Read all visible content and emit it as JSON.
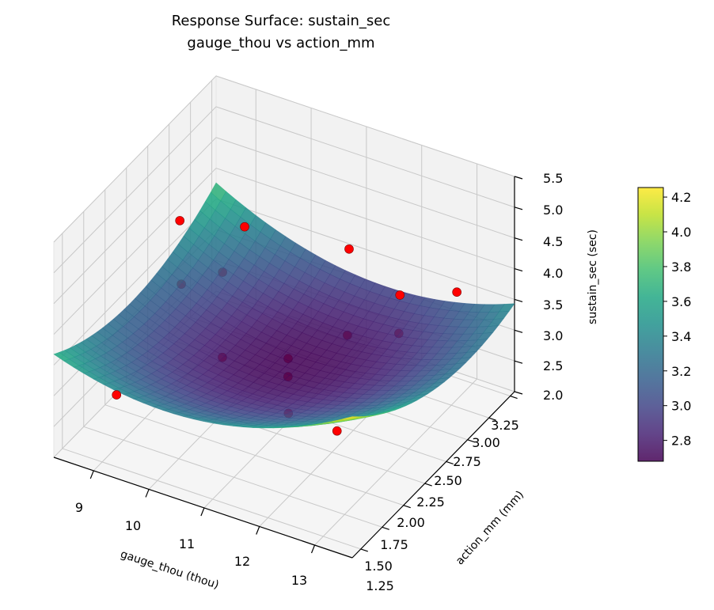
{
  "chart_data": {
    "type": "surface3d",
    "title": "Response Surface: sustain_sec",
    "subtitle": "gauge_thou vs action_mm",
    "xlabel": "gauge_thou (thou)",
    "ylabel": "action_mm (mm)",
    "zlabel": "sustain_sec (sec)",
    "xlim": [
      8.28,
      13.68
    ],
    "ylim": [
      1.4,
      3.3
    ],
    "zlim": [
      2.0,
      5.5
    ],
    "x_ticks": [
      "9",
      "10",
      "11",
      "12",
      "13"
    ],
    "y_ticks": [
      "1.25",
      "1.50",
      "1.75",
      "2.00",
      "2.25",
      "2.50",
      "2.75",
      "3.00",
      "3.25"
    ],
    "z_ticks": [
      "2.0",
      "2.5",
      "3.0",
      "3.5",
      "4.0",
      "4.5",
      "5.0",
      "5.5"
    ],
    "surface_model": {
      "form": "z = c + A*(x-10.9)^2 + B*(y-2.35)^2 + C*(x-10.9)*(y-2.35) + D*(x-10.9) + E*(y-2.35)",
      "c": 2.72,
      "A": 0.08,
      "B": 0.54,
      "C": -0.0926,
      "D": 0.0139,
      "E": -0.197
    },
    "surface_colormap": "viridis",
    "surface_color_range": [
      2.68,
      4.255
    ],
    "points": [
      {
        "gauge_thou": 8.86,
        "action_mm": 2.5,
        "sustain_sec": 4.46
      },
      {
        "gauge_thou": 9.26,
        "action_mm": 3.0,
        "sustain_sec": 3.77
      },
      {
        "gauge_thou": 11.15,
        "action_mm": 3.0,
        "sustain_sec": 3.98
      },
      {
        "gauge_thou": 12.07,
        "action_mm": 3.0,
        "sustain_sec": 3.51
      },
      {
        "gauge_thou": 13.1,
        "action_mm": 3.0,
        "sustain_sec": 3.87
      },
      {
        "gauge_thou": 9.66,
        "action_mm": 2.0,
        "sustain_sec": 4.38
      },
      {
        "gauge_thou": 8.86,
        "action_mm": 3.0,
        "sustain_sec": 2.91
      },
      {
        "gauge_thou": 9.63,
        "action_mm": 2.5,
        "sustain_sec": 2.47
      },
      {
        "gauge_thou": 10.82,
        "action_mm": 2.5,
        "sustain_sec": 2.81
      },
      {
        "gauge_thou": 11.59,
        "action_mm": 2.0,
        "sustain_sec": 3.46
      },
      {
        "gauge_thou": 11.12,
        "action_mm": 3.0,
        "sustain_sec": 2.57
      },
      {
        "gauge_thou": 12.05,
        "action_mm": 3.0,
        "sustain_sec": 2.88
      },
      {
        "gauge_thou": 9.26,
        "action_mm": 1.5,
        "sustain_sec": 3.17
      },
      {
        "gauge_thou": 12.37,
        "action_mm": 1.5,
        "sustain_sec": 3.81
      },
      {
        "gauge_thou": 13.25,
        "action_mm": 1.5,
        "sustain_sec": 3.79
      }
    ],
    "point_color": "#ff0000",
    "colorbar": {
      "range": [
        2.68,
        4.255
      ],
      "ticks": [
        "2.8",
        "3.0",
        "3.2",
        "3.4",
        "3.6",
        "3.8",
        "4.0",
        "4.2"
      ]
    },
    "grid": true
  }
}
